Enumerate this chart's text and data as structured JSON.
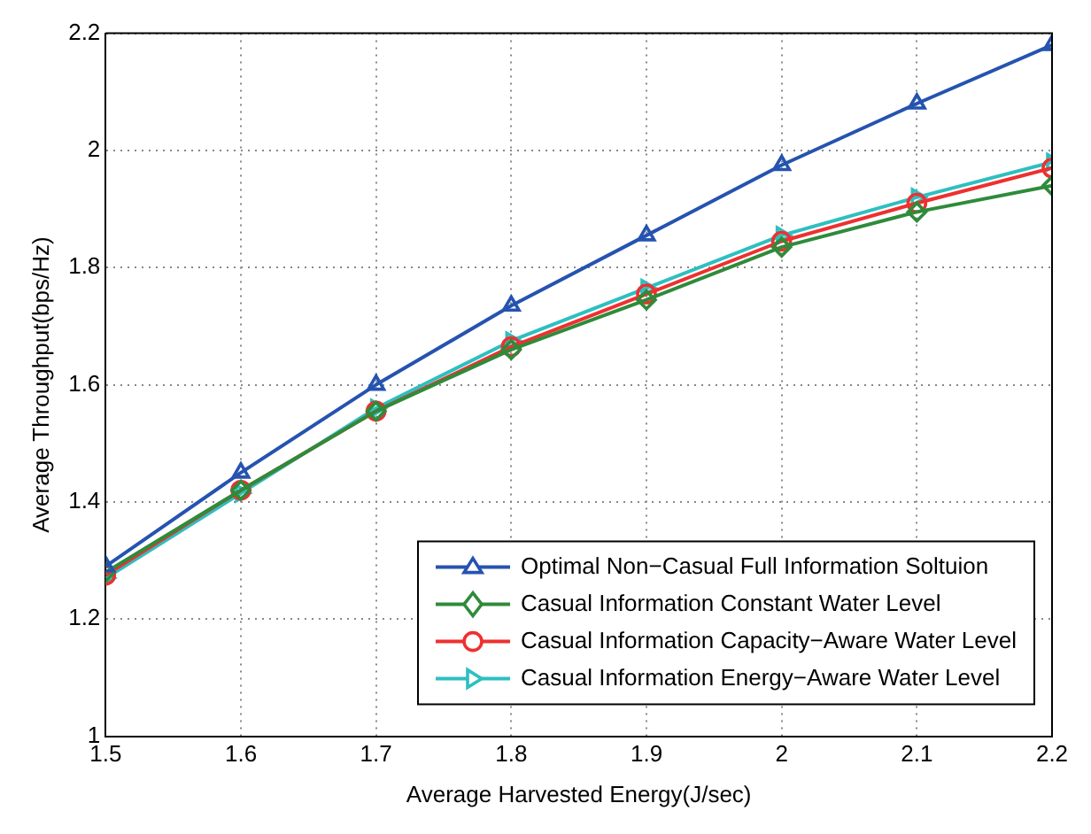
{
  "chart_data": {
    "type": "line",
    "xlabel": "Average Harvested Energy(J/sec)",
    "ylabel": "Average Throughput(bps/Hz)",
    "x": [
      1.5,
      1.6,
      1.7,
      1.8,
      1.9,
      2,
      2.1,
      2.2
    ],
    "xlim": [
      1.5,
      2.2
    ],
    "xticks": [
      1.5,
      1.6,
      1.7,
      1.8,
      1.9,
      2,
      2.1,
      2.2
    ],
    "ylim": [
      1,
      2.2
    ],
    "yticks": [
      1,
      1.2,
      1.4,
      1.6,
      1.8,
      2,
      2.2
    ],
    "grid": true,
    "legend": "bottom right",
    "line_style": "solid",
    "series": [
      {
        "name": "Optimal Non−Casual Full Information Soltuion",
        "color": "#2553b0",
        "marker": "triangle",
        "values": [
          1.29,
          1.45,
          1.6,
          1.735,
          1.855,
          1.975,
          2.08,
          2.18
        ]
      },
      {
        "name": "Casual Information Constant Water Level",
        "color": "#2e8b3a",
        "marker": "diamond",
        "values": [
          1.28,
          1.42,
          1.555,
          1.66,
          1.745,
          1.835,
          1.895,
          1.94
        ]
      },
      {
        "name": "Casual Information Capacity−Aware Water Level",
        "color": "#ee3030",
        "marker": "circle",
        "values": [
          1.275,
          1.42,
          1.555,
          1.665,
          1.755,
          1.845,
          1.91,
          1.97
        ]
      },
      {
        "name": "Casual Information Energy−Aware Water Level",
        "color": "#2ebfc0",
        "marker": "triangle-right",
        "values": [
          1.27,
          1.415,
          1.56,
          1.675,
          1.765,
          1.855,
          1.92,
          1.98
        ]
      }
    ]
  }
}
